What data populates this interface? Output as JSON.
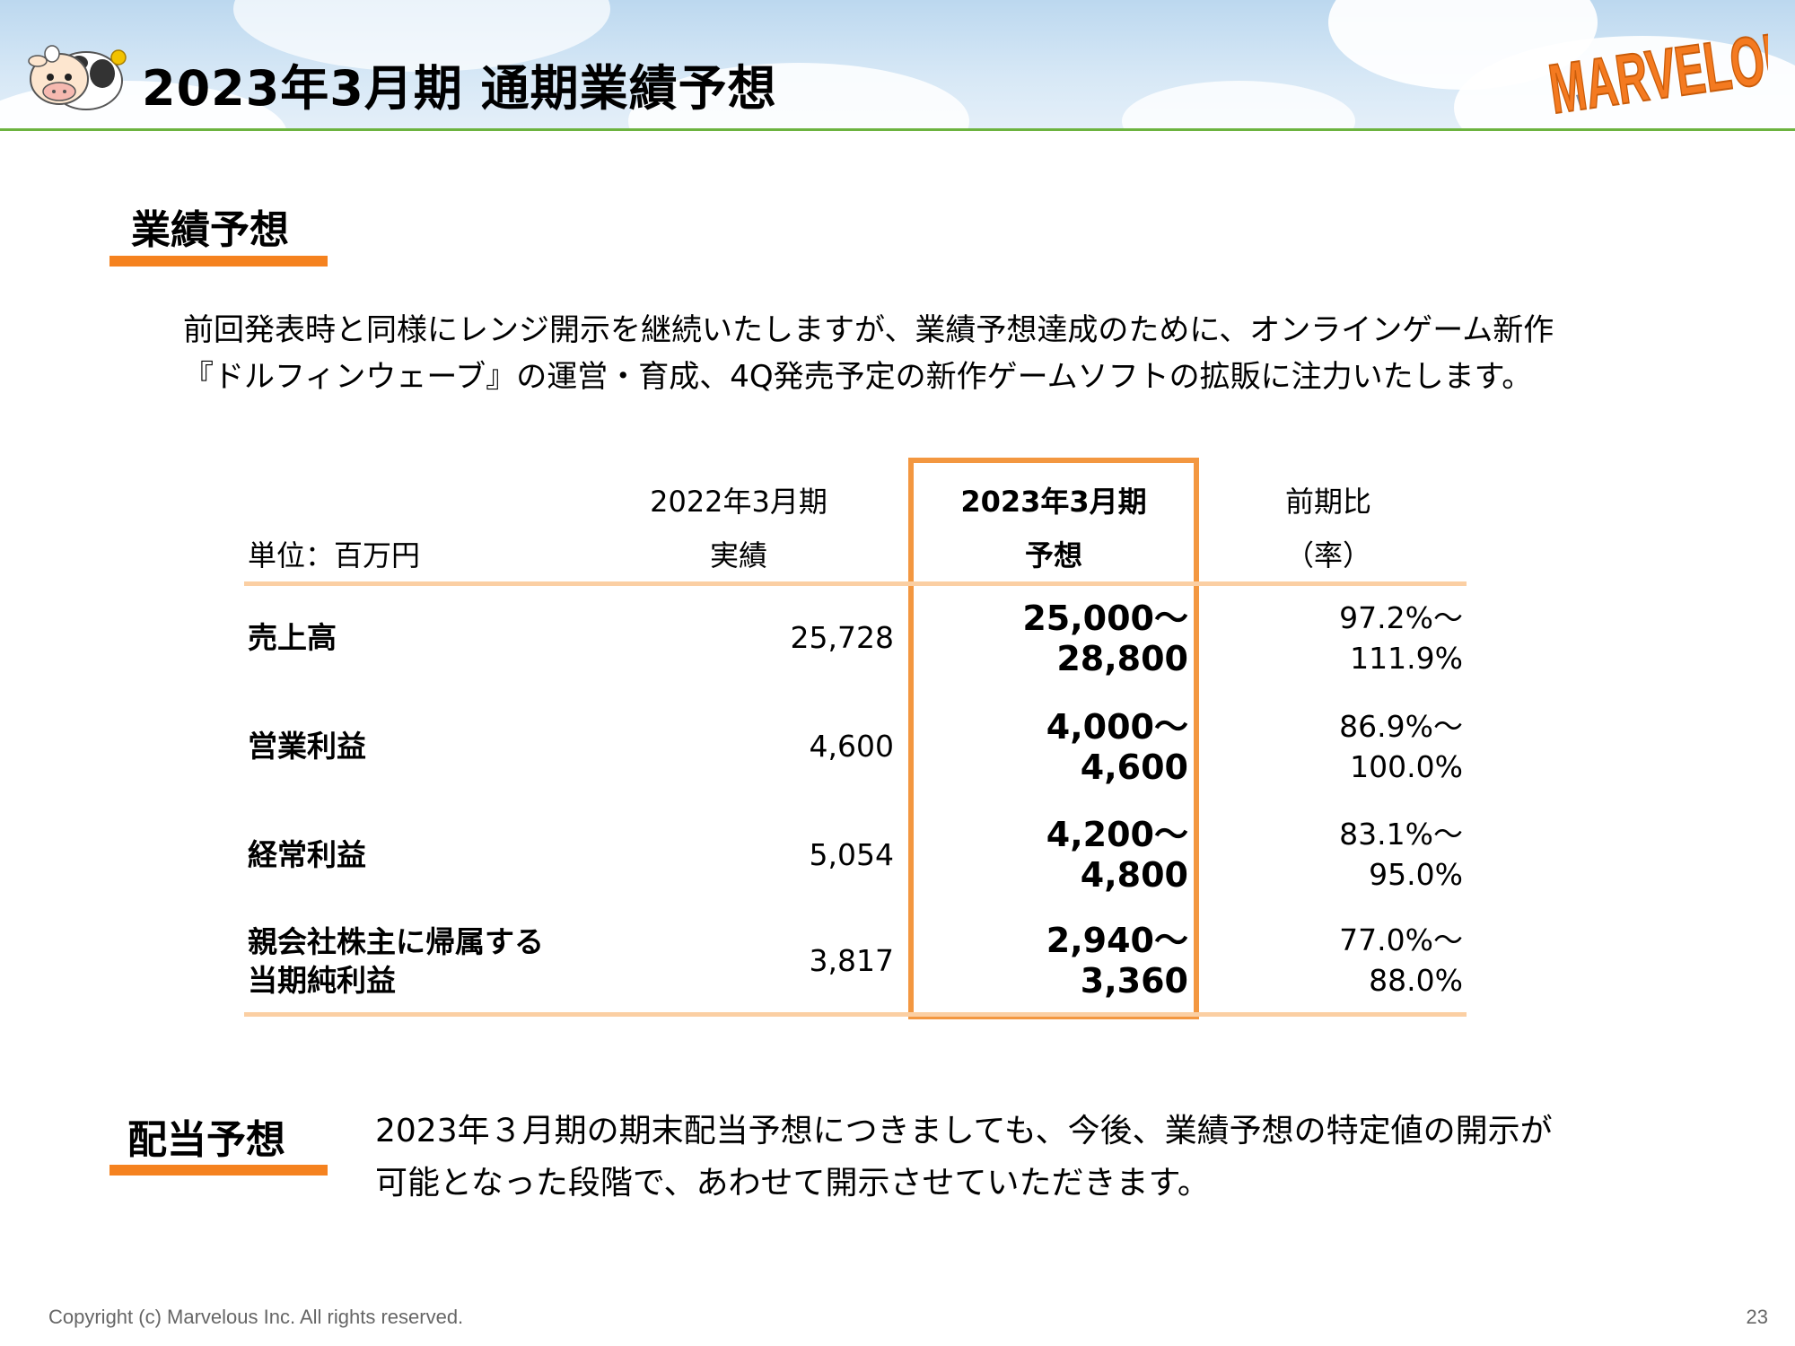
{
  "header": {
    "title": "2023年3月期 通期業績予想",
    "logo_text": "MARVELOUS!",
    "accent_color": "#f5821f",
    "line_color": "#6cb33f"
  },
  "forecast_section": {
    "heading": "業績予想",
    "intro_lines": [
      "前回発表時と同様にレンジ開示を継続いたしますが、業績予想達成のために、オンラインゲーム新作",
      "『ドルフィンウェーブ』の運営・育成、4Q発売予定の新作ゲームソフトの拡販に注力いたします。"
    ]
  },
  "table": {
    "unit_label": "単位：百万円",
    "col_prev": {
      "line1": "2022年3月期",
      "line2": "実績"
    },
    "col_forecast": {
      "line1": "2023年3月期",
      "line2": "予想"
    },
    "col_ratio": {
      "line1": "前期比",
      "line2": "（率）"
    },
    "rows": [
      {
        "label_line1": "売上高",
        "label_line2": "",
        "prev": "25,728",
        "forecast_line1": "25,000～",
        "forecast_line2": "28,800",
        "ratio_line1": "97.2%～",
        "ratio_line2": "111.9%"
      },
      {
        "label_line1": "営業利益",
        "label_line2": "",
        "prev": "4,600",
        "forecast_line1": "4,000～",
        "forecast_line2": "4,600",
        "ratio_line1": "86.9%～",
        "ratio_line2": "100.0%"
      },
      {
        "label_line1": "経常利益",
        "label_line2": "",
        "prev": "5,054",
        "forecast_line1": "4,200～",
        "forecast_line2": "4,800",
        "ratio_line1": "83.1%～",
        "ratio_line2": "95.0%"
      },
      {
        "label_line1": "親会社株主に帰属する",
        "label_line2": "当期純利益",
        "prev": "3,817",
        "forecast_line1": "2,940～",
        "forecast_line2": "3,360",
        "ratio_line1": "77.0%～",
        "ratio_line2": "88.0%"
      }
    ]
  },
  "dividend_section": {
    "heading": "配当予想",
    "text_lines": [
      "2023年３月期の期末配当予想につきましても、今後、業績予想の特定値の開示が",
      "可能となった段階で、あわせて開示させていただきます。"
    ]
  },
  "footer": {
    "copyright": "Copyright (c) Marvelous Inc. All rights reserved.",
    "page_number": "23"
  }
}
